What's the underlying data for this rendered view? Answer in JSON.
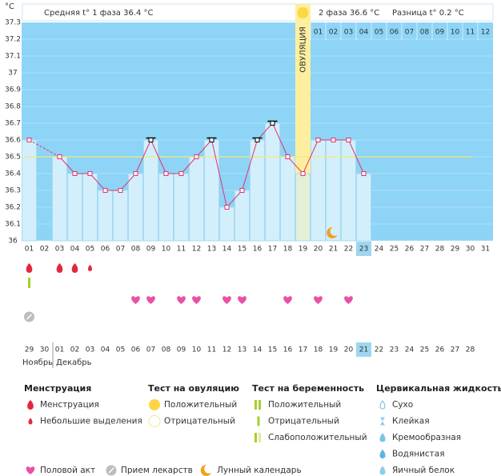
{
  "header": {
    "unit": "°C",
    "phase1": "Средняя t° 1 фаза 36.4 °C",
    "phase2": "2 фаза 36.6 °C",
    "difference": "Разница t° 0.2 °C"
  },
  "chart_data": {
    "type": "line",
    "categories": [
      "01",
      "02",
      "03",
      "04",
      "05",
      "06",
      "07",
      "08",
      "09",
      "10",
      "11",
      "12",
      "13",
      "14",
      "15",
      "16",
      "17",
      "18",
      "19",
      "20",
      "21",
      "22",
      "23",
      "24",
      "25",
      "26",
      "27",
      "28",
      "29",
      "30",
      "31"
    ],
    "values": [
      36.6,
      null,
      36.5,
      36.4,
      36.4,
      36.3,
      36.3,
      36.4,
      36.6,
      36.4,
      36.4,
      36.5,
      36.6,
      36.2,
      36.3,
      36.6,
      36.7,
      36.5,
      36.4,
      36.6,
      36.6,
      36.6,
      36.4,
      null,
      null,
      null,
      null,
      null,
      null,
      null,
      null
    ],
    "color": "#e0336e",
    "bar_color": "#d3effc",
    "background_color": "#8dd4f6",
    "ylim": [
      36,
      37.3
    ],
    "yticks": [
      36,
      36.1,
      36.2,
      36.3,
      36.4,
      36.5,
      36.6,
      36.7,
      36.8,
      36.9,
      37,
      37.1,
      37.2,
      37.3
    ],
    "cover_line": 36.5,
    "ovulation": {
      "label": "ОВУЛЯЦИЯ",
      "day": "19"
    },
    "high_marks": [
      "09",
      "13",
      "16",
      "17"
    ],
    "today": "23",
    "phase2_days": [
      "01",
      "02",
      "03",
      "04",
      "05",
      "06",
      "07",
      "08",
      "09",
      "10",
      "11",
      "12"
    ]
  },
  "events": {
    "menstruation_heavy": [
      "01",
      "03",
      "04"
    ],
    "menstruation_light": [
      "05"
    ],
    "pregnancy_test_faint": [
      "01"
    ],
    "intercourse": [
      "08",
      "09",
      "11",
      "12",
      "14",
      "15",
      "18",
      "20",
      "22"
    ],
    "medication": [
      "01"
    ],
    "lunar": [
      "21"
    ]
  },
  "calendar": {
    "dates": [
      {
        "label": "29",
        "weekend": false
      },
      {
        "label": "30",
        "weekend": true
      },
      {
        "label": "01",
        "weekend": false
      },
      {
        "label": "02",
        "weekend": false
      },
      {
        "label": "03",
        "weekend": false
      },
      {
        "label": "04",
        "weekend": false
      },
      {
        "label": "05",
        "weekend": false
      },
      {
        "label": "06",
        "weekend": true
      },
      {
        "label": "07",
        "weekend": true
      },
      {
        "label": "08",
        "weekend": false
      },
      {
        "label": "09",
        "weekend": false
      },
      {
        "label": "10",
        "weekend": false
      },
      {
        "label": "11",
        "weekend": false
      },
      {
        "label": "12",
        "weekend": false
      },
      {
        "label": "13",
        "weekend": true
      },
      {
        "label": "14",
        "weekend": true
      },
      {
        "label": "15",
        "weekend": false
      },
      {
        "label": "16",
        "weekend": false
      },
      {
        "label": "17",
        "weekend": false
      },
      {
        "label": "18",
        "weekend": false
      },
      {
        "label": "19",
        "weekend": false
      },
      {
        "label": "20",
        "weekend": true
      },
      {
        "label": "21",
        "weekend": true
      },
      {
        "label": "22",
        "weekend": false
      },
      {
        "label": "23",
        "weekend": false
      },
      {
        "label": "24",
        "weekend": false
      },
      {
        "label": "25",
        "weekend": false
      },
      {
        "label": "26",
        "weekend": false
      },
      {
        "label": "27",
        "weekend": true
      },
      {
        "label": "28",
        "weekend": true
      }
    ],
    "months": [
      "Ноябрь",
      "Декабрь"
    ]
  },
  "legend": {
    "menstruation": {
      "title": "Менструация",
      "items": [
        "Менструация",
        "Небольшие выделения"
      ]
    },
    "ovulation_test": {
      "title": "Тест на овуляцию",
      "items": [
        "Положительный",
        "Отрицательный"
      ]
    },
    "pregnancy_test": {
      "title": "Тест на беременность",
      "items": [
        "Положительный",
        "Отрицательный",
        "Слабоположительный"
      ]
    },
    "cervical": {
      "title": "Цервикальная жидкость",
      "items": [
        "Сухо",
        "Клейкая",
        "Кремообразная",
        "Водянистая",
        "Яичный белок"
      ]
    },
    "other": [
      "Половой акт",
      "Прием лекарств",
      "Лунный календарь"
    ]
  }
}
